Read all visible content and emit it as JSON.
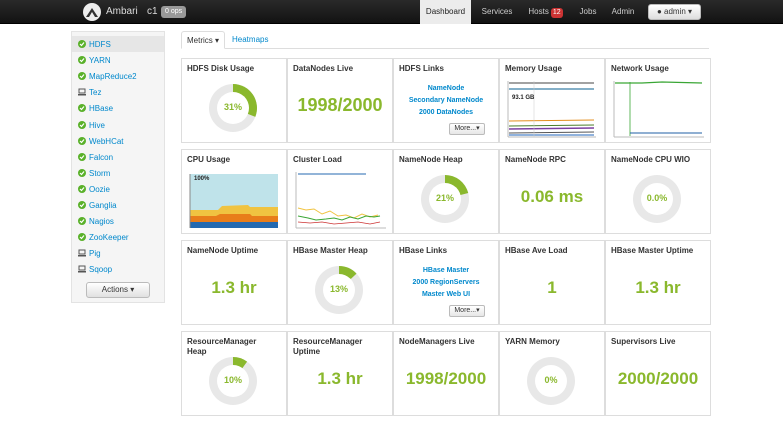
{
  "navbar": {
    "brand": "Ambari",
    "cluster_name": "c1",
    "ops_badge": "0 ops",
    "tabs": [
      {
        "label": "Dashboard"
      },
      {
        "label": "Services"
      },
      {
        "label": "Hosts"
      },
      {
        "label": "Jobs"
      },
      {
        "label": "Admin"
      }
    ],
    "hosts_alert_count": "12",
    "user_menu": "admin"
  },
  "sidebar": {
    "items": [
      {
        "label": "HDFS",
        "status": "ok"
      },
      {
        "label": "YARN",
        "status": "ok"
      },
      {
        "label": "MapReduce2",
        "status": "ok"
      },
      {
        "label": "Tez",
        "status": "client"
      },
      {
        "label": "HBase",
        "status": "ok"
      },
      {
        "label": "Hive",
        "status": "ok"
      },
      {
        "label": "WebHCat",
        "status": "ok"
      },
      {
        "label": "Falcon",
        "status": "ok"
      },
      {
        "label": "Storm",
        "status": "ok"
      },
      {
        "label": "Oozie",
        "status": "ok"
      },
      {
        "label": "Ganglia",
        "status": "ok"
      },
      {
        "label": "Nagios",
        "status": "ok"
      },
      {
        "label": "ZooKeeper",
        "status": "ok"
      },
      {
        "label": "Pig",
        "status": "client"
      },
      {
        "label": "Sqoop",
        "status": "client"
      }
    ],
    "actions_label": "Actions"
  },
  "subtabs": {
    "metrics": "Metrics",
    "heatmaps": "Heatmaps"
  },
  "widgets": {
    "hdfs_disk_usage": {
      "title": "HDFS Disk Usage",
      "percent": 31,
      "label": "31%"
    },
    "datanodes_live": {
      "title": "DataNodes Live",
      "value": "1998/2000"
    },
    "hdfs_links": {
      "title": "HDFS Links",
      "links": [
        "NameNode",
        "Secondary NameNode",
        "2000 DataNodes"
      ],
      "more": "More..."
    },
    "memory_usage": {
      "title": "Memory Usage",
      "annotation": "93.1 GB"
    },
    "network_usage": {
      "title": "Network Usage"
    },
    "cpu_usage": {
      "title": "CPU Usage",
      "annotation": "100%"
    },
    "cluster_load": {
      "title": "Cluster Load"
    },
    "namenode_heap": {
      "title": "NameNode Heap",
      "percent": 21,
      "label": "21%"
    },
    "namenode_rpc": {
      "title": "NameNode RPC",
      "value": "0.06 ms"
    },
    "namenode_cpu_wio": {
      "title": "NameNode CPU WIO",
      "percent": 0,
      "label": "0.0%"
    },
    "namenode_uptime": {
      "title": "NameNode Uptime",
      "value": "1.3 hr"
    },
    "hbase_master_heap": {
      "title": "HBase Master Heap",
      "percent": 13,
      "label": "13%"
    },
    "hbase_links": {
      "title": "HBase Links",
      "links": [
        "HBase Master",
        "2000 RegionServers",
        "Master Web UI"
      ],
      "more": "More..."
    },
    "hbase_ave_load": {
      "title": "HBase Ave Load",
      "value": "1"
    },
    "hbase_master_uptime": {
      "title": "HBase Master Uptime",
      "value": "1.3 hr"
    },
    "resourcemanager_heap": {
      "title": "ResourceManager Heap",
      "percent": 10,
      "label": "10%"
    },
    "resourcemanager_uptime": {
      "title": "ResourceManager Uptime",
      "value": "1.3 hr"
    },
    "nodemanagers_live": {
      "title": "NodeManagers Live",
      "value": "1998/2000"
    },
    "yarn_memory": {
      "title": "YARN Memory",
      "percent": 0,
      "label": "0%"
    },
    "supervisors_live": {
      "title": "Supervisors Live",
      "value": "2000/2000"
    }
  },
  "colors": {
    "accent_green": "#8ab82d",
    "link_blue": "#0088cc",
    "alert_red": "#cc3333"
  }
}
